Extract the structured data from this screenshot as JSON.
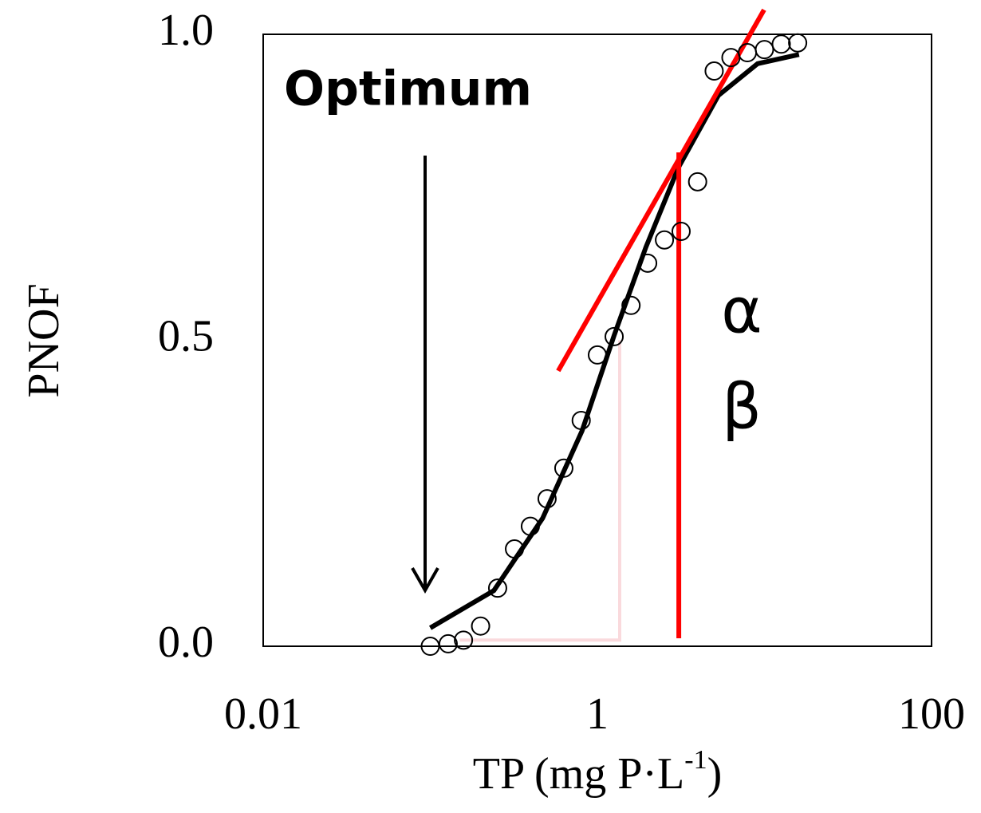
{
  "chart_data": {
    "type": "scatter",
    "y_label": "PNOF",
    "x_label": [
      "TP (mg P·L",
      "-1",
      ")"
    ],
    "annotations": [
      "Optimum",
      "α",
      "β"
    ],
    "xscale": "log",
    "xlim": [
      0.01,
      100
    ],
    "xticks": [
      0.01,
      1,
      100
    ],
    "ylim": [
      0,
      1
    ],
    "yticks": [
      {
        "value": 0,
        "label": "0.0"
      },
      0.5,
      {
        "value": 1,
        "label": "1.0"
      }
    ],
    "series": [
      {
        "kind": "markers",
        "color": "#000000",
        "x": [
          0.1,
          0.128,
          0.158,
          0.2,
          0.253,
          0.319,
          0.397,
          0.5,
          0.63,
          0.8,
          1.0,
          1.26,
          1.59,
          2.0,
          2.52,
          3.17,
          3.98,
          5.0,
          6.3,
          7.9,
          10,
          12.6,
          15.8
        ],
        "y": [
          0,
          0.004,
          0.01,
          0.033,
          0.095,
          0.159,
          0.196,
          0.241,
          0.291,
          0.369,
          0.476,
          0.506,
          0.557,
          0.626,
          0.664,
          0.678,
          0.759,
          0.94,
          0.962,
          0.97,
          0.975,
          0.984,
          0.986
        ]
      },
      {
        "kind": "line",
        "color": "#000000",
        "width": 6,
        "x": [
          0.1,
          0.24,
          0.47,
          0.81,
          1.26,
          1.95,
          3.05,
          5.3,
          9.1,
          16.1
        ],
        "y": [
          0.03,
          0.091,
          0.209,
          0.352,
          0.508,
          0.652,
          0.782,
          0.9,
          0.952,
          0.967
        ]
      },
      {
        "kind": "line",
        "color": "#fadadd",
        "width": 4,
        "x": [
          0.15,
          1.36,
          1.36
        ],
        "y": [
          0.01,
          0.01,
          0.5
        ]
      },
      {
        "kind": "line",
        "color": "#ff0000",
        "width": 6,
        "x": [
          0.583,
          9.95
        ],
        "y": [
          0.45,
          1.04
        ]
      },
      {
        "kind": "line",
        "color": "#ff0000",
        "width": 6,
        "x": [
          3.07,
          3.07
        ],
        "y": [
          0.013,
          0.807
        ]
      }
    ]
  }
}
